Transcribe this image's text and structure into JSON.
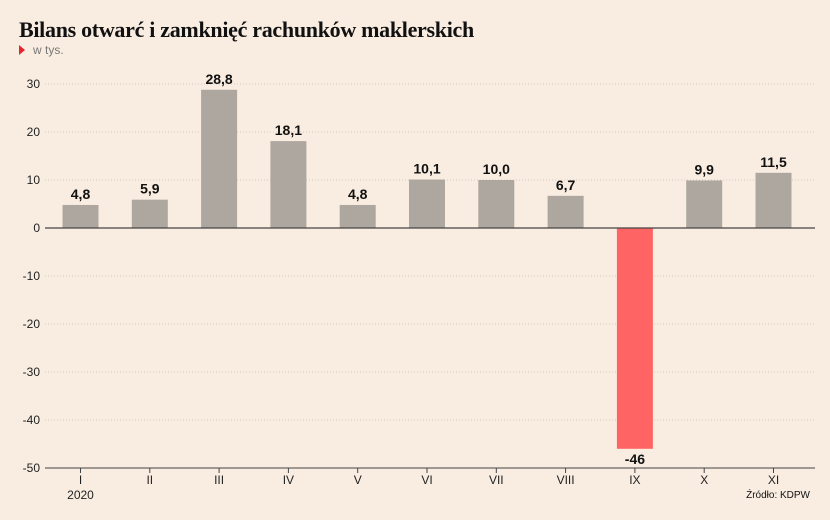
{
  "title": "Bilans otwarć i zamknięć rachunków maklerskich",
  "subtitle": "w tys.",
  "source": "Źródło: KDPW",
  "colors": {
    "positive": "#ada79f",
    "negative": "#ff6464",
    "grid": "#cfc7be",
    "axis": "#444444",
    "background": "#f9ede1"
  },
  "chart_data": {
    "type": "bar",
    "title": "Bilans otwarć i zamknięć rachunków maklerskich",
    "subtitle": "w tys.",
    "categories": [
      "I",
      "II",
      "III",
      "IV",
      "V",
      "VI",
      "VII",
      "VIII",
      "IX",
      "X",
      "XI"
    ],
    "category_year": "2020",
    "values": [
      4.8,
      5.9,
      28.8,
      18.1,
      4.8,
      10.1,
      10.0,
      6.7,
      -46,
      9.9,
      11.5
    ],
    "value_labels": [
      "4,8",
      "5,9",
      "28,8",
      "18,1",
      "4,8",
      "10,1",
      "10,0",
      "6,7",
      "-46",
      "9,9",
      "11,5"
    ],
    "ylim": [
      -50,
      30
    ],
    "yticks": [
      30,
      20,
      10,
      0,
      -10,
      -20,
      -30,
      -40,
      -50
    ],
    "grid": true,
    "xlabel": "",
    "ylabel": ""
  }
}
